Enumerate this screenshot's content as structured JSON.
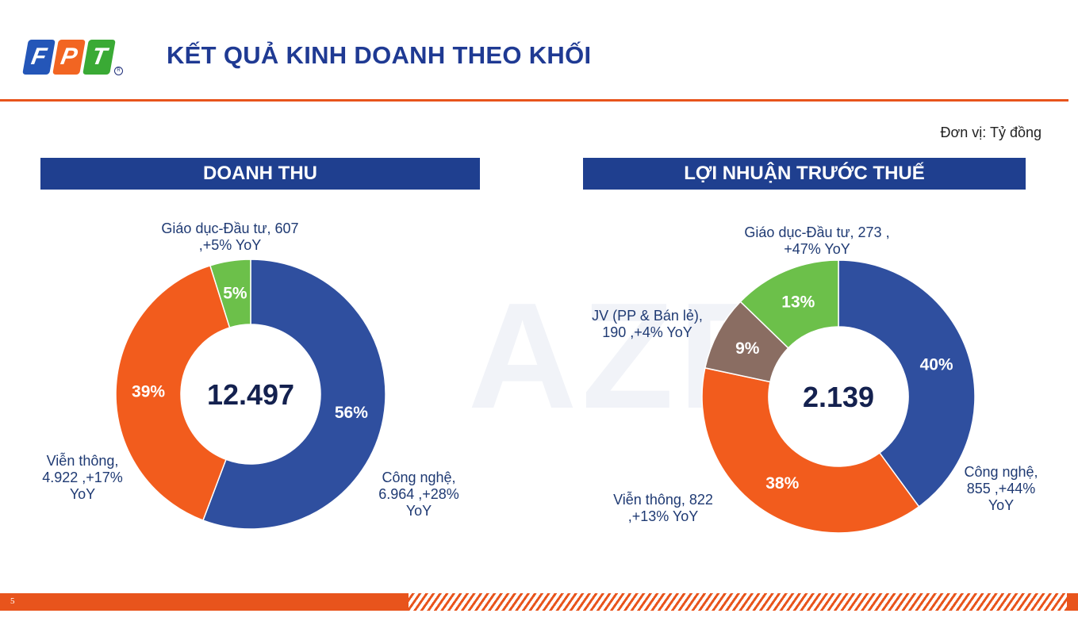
{
  "header": {
    "logo_letters": [
      "F",
      "P",
      "T"
    ],
    "logo_colors": [
      "#2456b8",
      "#f26522",
      "#3aaa35"
    ],
    "title": "KẾT QUẢ KINH DOANH THEO KHỐI"
  },
  "unit_note": "Đơn vị: Tỷ đồng",
  "watermark": "AZF",
  "page_number": "5",
  "colors": {
    "accent": "#e8541c",
    "navy": "#1f3f8f",
    "cong_nghe": "#2f4f9f",
    "vien_thong": "#f25c1d",
    "giao_duc": "#6cc04a",
    "jv": "#8a6d62"
  },
  "chart_data": [
    {
      "type": "pie",
      "title": "DOANH THU",
      "center_value": "12.497",
      "slices": [
        {
          "label_lines": [
            "Công nghệ,",
            "6.964 ,+28%",
            "YoY"
          ],
          "value": 6964,
          "percent_label": "56%"
        },
        {
          "label_lines": [
            "Viễn thông,",
            "4.922 ,+17%",
            "YoY"
          ],
          "value": 4922,
          "percent_label": "39%"
        },
        {
          "label_lines": [
            "Giáo dục-Đầu tư, 607",
            ",+5% YoY"
          ],
          "value": 607,
          "percent_label": "5%"
        }
      ]
    },
    {
      "type": "pie",
      "title": "LỢI NHUẬN TRƯỚC THUẾ",
      "center_value": "2.139",
      "slices": [
        {
          "label_lines": [
            "Công nghệ,",
            "855 ,+44%",
            "YoY"
          ],
          "value": 855,
          "percent_label": "40%"
        },
        {
          "label_lines": [
            "Viễn thông, 822",
            ",+13% YoY"
          ],
          "value": 822,
          "percent_label": "38%"
        },
        {
          "label_lines": [
            "JV (PP & Bán lẻ),",
            "190 ,+4% YoY"
          ],
          "value": 190,
          "percent_label": "9%"
        },
        {
          "label_lines": [
            "Giáo dục-Đầu tư, 273 ,",
            "+47% YoY"
          ],
          "value": 273,
          "percent_label": "13%"
        }
      ]
    }
  ]
}
